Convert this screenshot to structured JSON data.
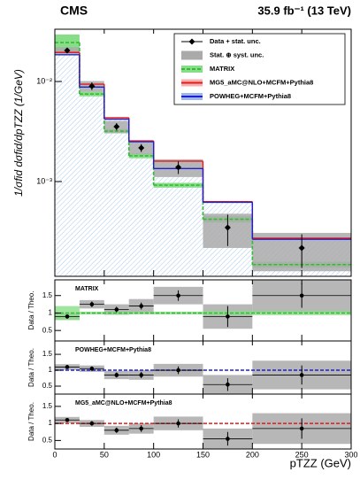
{
  "chart_data": [
    {
      "type": "histogram",
      "title": "CMS",
      "subtitle": "35.9 fb⁻¹ (13 TeV)",
      "ylabel": "1/σfid dσfid/dpTZZ (1/GeV)",
      "xlabel": "pTZZ (GeV)",
      "bins": [
        0,
        25,
        50,
        75,
        100,
        150,
        200,
        300
      ],
      "xlim": [
        0,
        300
      ],
      "xticks": [
        0,
        50,
        100,
        150,
        200,
        250,
        300
      ],
      "ylim": [
        0.000113,
        0.0333
      ],
      "log_y": true,
      "yticks": [
        {
          "value": 0.01,
          "label": "10⁻²"
        },
        {
          "value": 0.001,
          "label": "10⁻³"
        }
      ],
      "legend": "top-right",
      "series": [
        {
          "name": "Data + stat. unc.",
          "style": "marker",
          "color": "#000000",
          "values": [
            0.0204,
            0.009,
            0.00354,
            0.00217,
            0.00139,
            0.000347,
            0.000217
          ],
          "errors": [
            0.0012,
            0.0008,
            0.0003,
            0.0002,
            0.0002,
            0.00012,
            8e-05
          ]
        },
        {
          "name": "Stat. ⊕ syst. unc.",
          "style": "band",
          "color": "#aaaaaa",
          "errors": [
            0.0016,
            0.0011,
            0.0005,
            0.0003,
            0.00028,
            0.00013,
            9e-05
          ]
        },
        {
          "name": "MATRIX",
          "style": "dashed",
          "color": "#33bb33",
          "band_color": "#88dd88",
          "values": [
            0.0245,
            0.0075,
            0.00319,
            0.00181,
            0.00092,
            0.00042,
            0.000148
          ],
          "errors": [
            0.005,
            0.0004,
            0.00015,
            0.0001,
            5e-05,
            3e-05,
            1e-05
          ]
        },
        {
          "name": "MG5_aMC@NLO+MCFM+Pythia8",
          "style": "line",
          "color": "#e41a1c",
          "band_color": "#f7b0b0",
          "values": [
            0.0195,
            0.0094,
            0.00434,
            0.00255,
            0.0016,
            0.00063,
            0.000272
          ]
        },
        {
          "name": "POWHEG+MCFM+Pythia8",
          "style": "line",
          "color": "#1f1fd0",
          "band_color": "#9db6f0",
          "values": [
            0.0185,
            0.0088,
            0.0042,
            0.0025,
            0.00135,
            0.00062,
            0.000265
          ]
        }
      ]
    },
    {
      "type": "ratio",
      "label": "MATRIX",
      "ylabel": "Data / Theo.",
      "line_color": "#33bb33",
      "band_color": "#88dd88",
      "ylim": [
        0.2,
        1.95
      ],
      "yticks": [
        0.5,
        1,
        1.5
      ],
      "values": [
        0.9,
        1.25,
        1.1,
        1.2,
        1.5,
        0.9,
        1.5
      ],
      "errors": [
        0.06,
        0.08,
        0.08,
        0.1,
        0.15,
        0.3,
        0.35
      ],
      "band": [
        0.1,
        0.12,
        0.15,
        0.2,
        0.25,
        0.35,
        0.5
      ],
      "theory_errors": [
        0.2,
        0.04,
        0.04,
        0.04,
        0.04,
        0.06,
        0.06
      ]
    },
    {
      "type": "ratio",
      "label": "POWHEG+MCFM+Pythia8",
      "ylabel": "Data / Theo.",
      "line_color": "#1f1fd0",
      "ylim": [
        0.25,
        1.92
      ],
      "yticks": [
        0.5,
        1,
        1.5
      ],
      "values": [
        1.1,
        1.05,
        0.85,
        0.85,
        1.0,
        0.55,
        0.85
      ],
      "errors": [
        0.06,
        0.07,
        0.08,
        0.1,
        0.12,
        0.2,
        0.3
      ],
      "band": [
        0.09,
        0.1,
        0.13,
        0.15,
        0.2,
        0.3,
        0.45
      ]
    },
    {
      "type": "ratio",
      "label": "MG5_aMC@NLO+MCFM+Pythia8",
      "ylabel": "Data / Theo.",
      "line_color": "#e41a1c",
      "ylim": [
        0.25,
        1.86
      ],
      "yticks": [
        0.5,
        1,
        1.5
      ],
      "values": [
        1.1,
        1.0,
        0.8,
        0.85,
        1.0,
        0.55,
        0.85
      ],
      "errors": [
        0.06,
        0.07,
        0.08,
        0.1,
        0.12,
        0.2,
        0.3
      ],
      "band": [
        0.09,
        0.1,
        0.13,
        0.15,
        0.2,
        0.3,
        0.45
      ]
    }
  ]
}
